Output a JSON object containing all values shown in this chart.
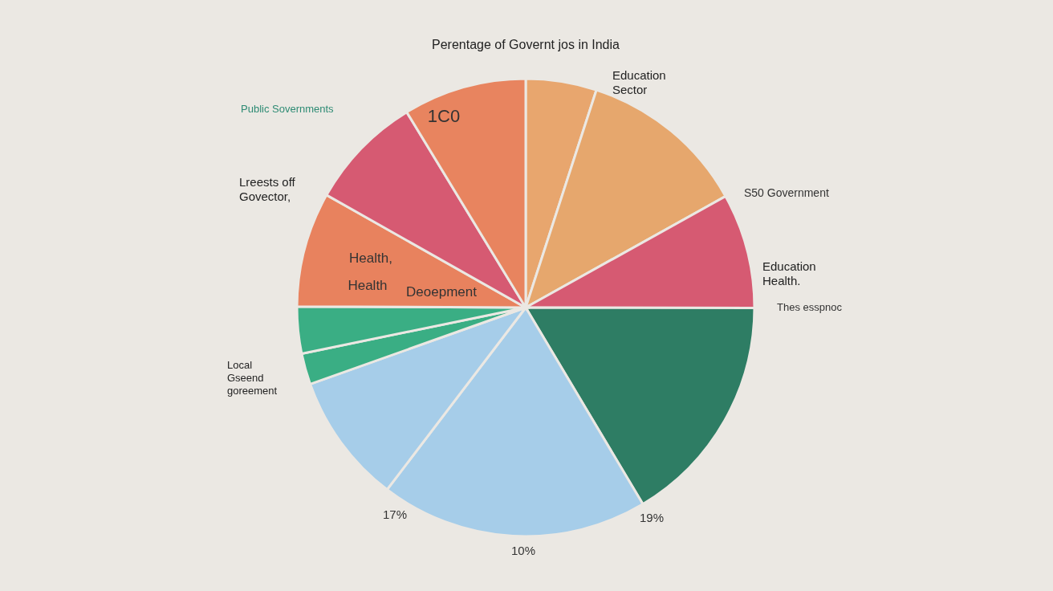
{
  "chart_data": {
    "type": "pie",
    "title": "Perentage of Governt jos in India",
    "categories": [
      null,
      null,
      null,
      null,
      null,
      null,
      null,
      null,
      null,
      null,
      null
    ],
    "values": [
      5,
      11.9,
      8.1,
      16.4,
      18.9,
      9.2,
      2.2,
      3.3,
      8.1,
      8.1,
      8.7
    ],
    "colors": [
      "#e8a66e",
      "#e6a76d",
      "#d65a72",
      "#2e7d64",
      "#a6cde9",
      "#a6cde9",
      "#3aae84",
      "#3aae84",
      "#e8825e",
      "#d65a72",
      "#e8845f"
    ],
    "annotations": [
      "Public Sovernments",
      "Education Sector",
      "Lreests off Govector,",
      "S50 Government",
      "Education Health.",
      "Thes esspnoc",
      "Local Gseend goreement",
      "17%",
      "19%",
      "10%",
      "1C0",
      "Health,",
      "Health",
      "Deoepment"
    ]
  }
}
